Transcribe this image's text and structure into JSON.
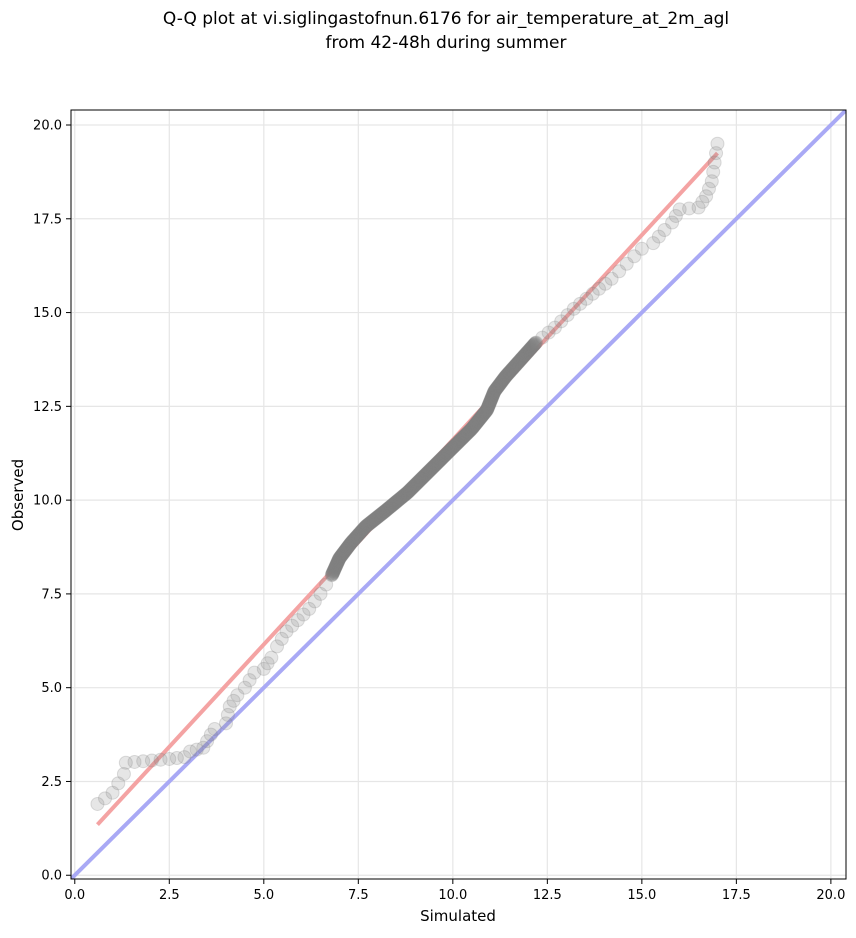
{
  "chart_data": {
    "type": "scatter",
    "title": [
      "Q-Q plot at vi.siglingastofnun.6176 for air_temperature_at_2m_agl",
      "from 42-48h during summer"
    ],
    "xlabel": "Simulated",
    "ylabel": "Observed",
    "xlim": [
      -0.1,
      20.4
    ],
    "ylim": [
      -0.1,
      20.4
    ],
    "xticks": [
      0.0,
      2.5,
      5.0,
      7.5,
      10.0,
      12.5,
      15.0,
      17.5,
      20.0
    ],
    "yticks": [
      0.0,
      2.5,
      5.0,
      7.5,
      10.0,
      12.5,
      15.0,
      17.5,
      20.0
    ],
    "xtick_labels": [
      "0.0",
      "2.5",
      "5.0",
      "7.5",
      "10.0",
      "12.5",
      "15.0",
      "17.5",
      "20.0"
    ],
    "ytick_labels": [
      "0.0",
      "2.5",
      "5.0",
      "7.5",
      "10.0",
      "12.5",
      "15.0",
      "17.5",
      "20.0"
    ],
    "grid": true,
    "quantile_curve": [
      [
        0.6,
        1.9
      ],
      [
        1.0,
        2.2
      ],
      [
        1.3,
        2.7
      ],
      [
        1.35,
        3.0
      ],
      [
        2.5,
        3.1
      ],
      [
        2.9,
        3.15
      ],
      [
        3.05,
        3.3
      ],
      [
        3.4,
        3.4
      ],
      [
        3.6,
        3.75
      ],
      [
        3.7,
        3.9
      ],
      [
        4.0,
        4.05
      ],
      [
        4.1,
        4.5
      ],
      [
        4.3,
        4.8
      ],
      [
        4.5,
        5.0
      ],
      [
        4.75,
        5.4
      ],
      [
        5.0,
        5.5
      ],
      [
        5.2,
        5.8
      ],
      [
        5.35,
        6.1
      ],
      [
        5.6,
        6.5
      ],
      [
        5.9,
        6.8
      ],
      [
        6.2,
        7.1
      ],
      [
        6.5,
        7.5
      ],
      [
        6.8,
        8.0
      ],
      [
        7.0,
        8.45
      ],
      [
        7.3,
        8.85
      ],
      [
        7.7,
        9.3
      ],
      [
        8.2,
        9.7
      ],
      [
        8.8,
        10.2
      ],
      [
        9.4,
        10.8
      ],
      [
        10.0,
        11.4
      ],
      [
        10.5,
        11.9
      ],
      [
        10.9,
        12.4
      ],
      [
        11.1,
        12.9
      ],
      [
        11.4,
        13.3
      ],
      [
        11.8,
        13.75
      ],
      [
        12.2,
        14.2
      ],
      [
        12.7,
        14.6
      ],
      [
        13.2,
        15.1
      ],
      [
        13.7,
        15.5
      ],
      [
        14.2,
        15.9
      ],
      [
        14.6,
        16.3
      ],
      [
        15.0,
        16.7
      ],
      [
        15.3,
        16.85
      ],
      [
        15.6,
        17.2
      ],
      [
        15.8,
        17.4
      ],
      [
        16.0,
        17.75
      ],
      [
        16.5,
        17.8
      ],
      [
        16.7,
        18.1
      ],
      [
        16.85,
        18.5
      ],
      [
        17.0,
        19.5
      ]
    ],
    "fit_line": {
      "color": "#f4a3a3",
      "points": [
        [
          0.6,
          1.35
        ],
        [
          17.0,
          19.25
        ]
      ]
    },
    "reference_line": {
      "color": "#a9a9f5",
      "points": [
        [
          -0.1,
          -0.1
        ],
        [
          20.4,
          20.4
        ]
      ]
    },
    "marker_color": "#808080"
  }
}
